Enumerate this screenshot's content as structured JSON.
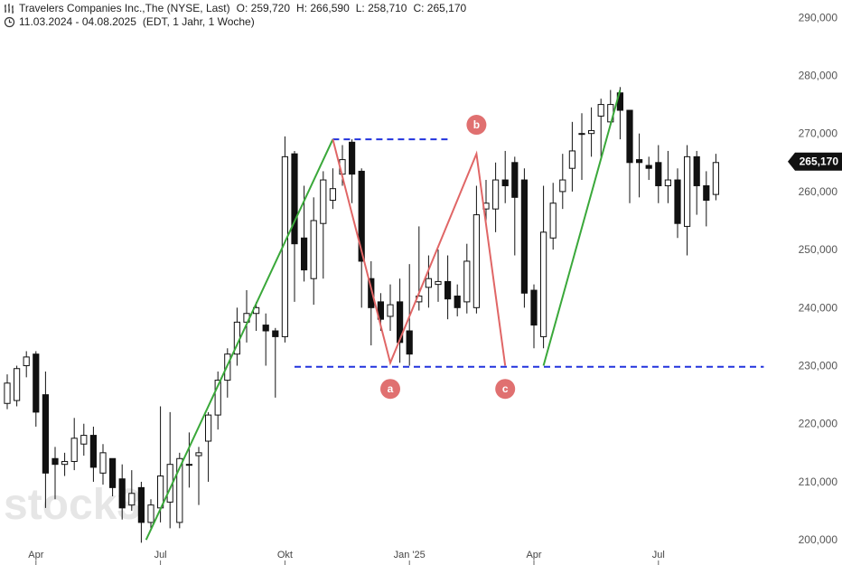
{
  "header": {
    "name": "Travelers Companies Inc.,The (NYSE, Last)",
    "o": "O: 259,720",
    "h": "H: 266,590",
    "l": "L: 258,710",
    "c": "C: 265,170",
    "range": "11.03.2024 - 04.08.2025",
    "meta": "(EDT, 1 Jahr, 1 Woche)"
  },
  "icons": [
    "bars-icon",
    "clock-icon"
  ],
  "watermark": "stock3",
  "colors": {
    "up_trend": "#3aa83a",
    "pattern": "#e06666",
    "level": "#2233dd",
    "badge": "#111111",
    "point": "#e07070"
  },
  "chart_data": {
    "type": "candlestick",
    "ylim": [
      198,
      293
    ],
    "yticks": [
      "200,000",
      "210,000",
      "220,000",
      "230,000",
      "240,000",
      "250,000",
      "260,000",
      "270,000",
      "280,000",
      "290,000"
    ],
    "xticks": [
      {
        "label": "Apr",
        "i": 3
      },
      {
        "label": "Jul",
        "i": 16
      },
      {
        "label": "Okt",
        "i": 29
      },
      {
        "label": "Jan '25",
        "i": 42
      },
      {
        "label": "Apr",
        "i": 55
      },
      {
        "label": "Jul",
        "i": 68
      }
    ],
    "last_price": "265,170",
    "last_value": 265.17,
    "candles": [
      [
        223.5,
        227,
        228.5,
        222.5
      ],
      [
        224,
        229.5,
        230,
        223
      ],
      [
        230,
        231.5,
        232.5,
        228
      ],
      [
        232,
        222,
        232.5,
        219.5
      ],
      [
        225,
        211.5,
        229,
        205.5
      ],
      [
        214,
        213,
        216,
        207
      ],
      [
        213,
        213.5,
        215,
        211
      ],
      [
        213.5,
        217.5,
        221,
        212
      ],
      [
        216.5,
        218,
        220,
        214.5
      ],
      [
        218,
        212.5,
        219.5,
        210
      ],
      [
        211.5,
        215,
        216.5,
        209.5
      ],
      [
        214,
        209,
        214,
        207.5
      ],
      [
        210.5,
        205.5,
        213,
        203.5
      ],
      [
        206,
        208,
        212,
        205
      ],
      [
        209,
        203,
        210,
        199.5
      ],
      [
        203,
        206,
        207,
        202
      ],
      [
        205.5,
        211,
        223,
        203
      ],
      [
        206.5,
        213,
        222,
        202
      ],
      [
        203,
        214,
        215,
        202
      ],
      [
        213,
        213,
        218.5,
        209
      ],
      [
        214.5,
        215,
        216,
        206
      ],
      [
        217,
        221.5,
        222,
        210
      ],
      [
        221.5,
        227.5,
        229,
        219
      ],
      [
        227.5,
        232,
        233,
        224.5
      ],
      [
        232,
        237.5,
        240,
        230
      ],
      [
        237.5,
        239,
        243,
        234
      ],
      [
        239,
        240,
        241,
        236
      ],
      [
        237,
        236,
        239,
        230
      ],
      [
        236,
        235,
        236.5,
        224.5
      ],
      [
        235,
        266,
        269.5,
        234
      ],
      [
        266.5,
        251,
        267,
        241
      ],
      [
        252,
        246.5,
        261,
        244.5
      ],
      [
        245,
        255,
        259,
        240.5
      ],
      [
        254.5,
        262,
        263.5,
        245
      ],
      [
        258.5,
        260.5,
        264,
        257
      ],
      [
        263,
        265.5,
        268,
        261
      ],
      [
        268.5,
        263,
        269,
        258
      ],
      [
        263.5,
        248,
        264,
        240
      ],
      [
        245,
        240,
        248,
        233.5
      ],
      [
        241,
        238,
        242.5,
        236
      ],
      [
        238.5,
        240.5,
        244,
        236
      ],
      [
        241,
        234,
        245,
        230.5
      ],
      [
        236,
        232,
        247.5,
        230
      ],
      [
        241,
        242,
        254,
        239.5
      ],
      [
        243.5,
        245,
        249,
        240
      ],
      [
        244,
        244.5,
        250,
        241
      ],
      [
        244.5,
        241.5,
        249,
        238
      ],
      [
        242,
        240,
        244,
        238.5
      ],
      [
        241,
        248,
        251,
        239
      ],
      [
        240,
        256,
        261,
        239
      ],
      [
        257,
        258,
        262,
        254
      ],
      [
        257,
        262,
        265,
        253
      ],
      [
        262,
        261,
        267,
        258
      ],
      [
        265,
        259,
        266,
        249
      ],
      [
        262,
        242.5,
        264,
        240
      ],
      [
        243,
        237,
        244,
        233
      ],
      [
        235,
        253,
        261,
        233
      ],
      [
        252,
        258,
        261.5,
        250
      ],
      [
        260,
        262,
        266.5,
        257
      ],
      [
        264,
        267,
        272,
        260
      ],
      [
        270,
        270,
        273.5,
        262
      ],
      [
        270,
        270.5,
        274.5,
        266
      ],
      [
        273,
        275,
        276,
        266
      ],
      [
        272,
        275,
        277.5,
        271.5
      ],
      [
        277,
        274,
        278,
        269
      ],
      [
        274,
        265,
        274,
        258
      ],
      [
        265.5,
        265,
        270,
        259
      ],
      [
        264.5,
        264,
        266,
        262
      ],
      [
        265,
        261,
        268,
        258
      ],
      [
        261,
        262,
        267,
        258
      ],
      [
        262,
        254.5,
        264,
        252
      ],
      [
        254,
        266,
        268,
        249
      ],
      [
        266,
        261,
        267,
        256
      ],
      [
        261,
        258.5,
        263.5,
        254
      ],
      [
        259.5,
        265,
        266.5,
        258.5
      ]
    ],
    "trend_lines": [
      {
        "from": [
          14.5,
          200
        ],
        "to": [
          34,
          269
        ]
      },
      {
        "from": [
          56,
          230
        ],
        "to": [
          64,
          277.5
        ]
      }
    ],
    "pattern_lines": [
      [
        [
          34,
          269
        ],
        [
          40,
          230.5
        ],
        [
          49,
          266.5
        ],
        [
          52,
          230
        ]
      ]
    ],
    "level_lines": [
      {
        "y": 269,
        "i_from": 34,
        "i_to": 46
      },
      {
        "y": 229.8,
        "i_from": 30,
        "i_to": 79
      }
    ],
    "points": [
      {
        "label": "a",
        "i": 40,
        "y": 226
      },
      {
        "label": "b",
        "i": 49,
        "y": 271.5
      },
      {
        "label": "c",
        "i": 52,
        "y": 226
      }
    ]
  }
}
